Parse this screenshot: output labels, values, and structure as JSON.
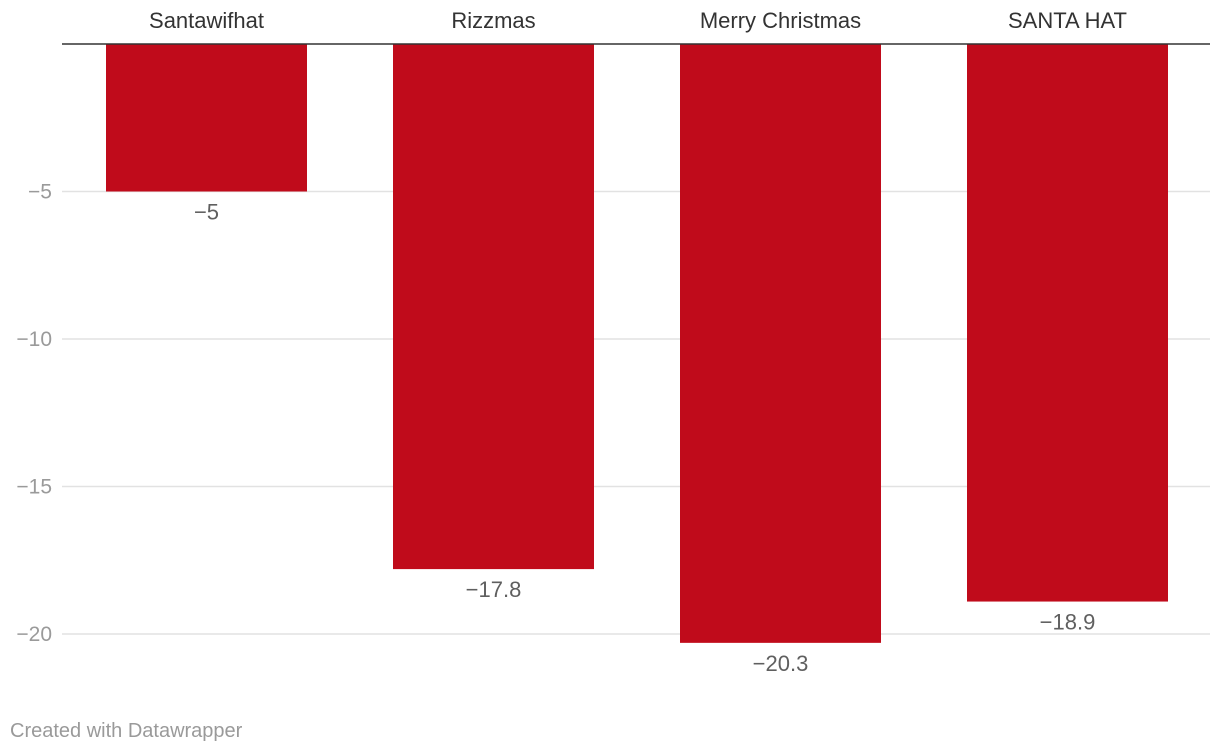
{
  "chart_data": {
    "type": "bar",
    "orientation": "vertical",
    "categories": [
      "Santawifhat",
      "Rizzmas",
      "Merry Christmas",
      "SANTA HAT"
    ],
    "values": [
      -5,
      -17.8,
      -20.3,
      -18.9
    ],
    "value_labels": [
      "−5",
      "−17.8",
      "−20.3",
      "−18.9"
    ],
    "y_ticks": [
      -5,
      -10,
      -15,
      -20
    ],
    "y_tick_labels": [
      "−5",
      "−10",
      "−15",
      "−20"
    ],
    "ylim": [
      -20.3,
      0
    ],
    "title": "",
    "xlabel": "",
    "ylabel": "",
    "grid": true,
    "category_labels_position": "top",
    "bar_color": "#c00b1b"
  },
  "footer": {
    "credit": "Created with Datawrapper"
  }
}
